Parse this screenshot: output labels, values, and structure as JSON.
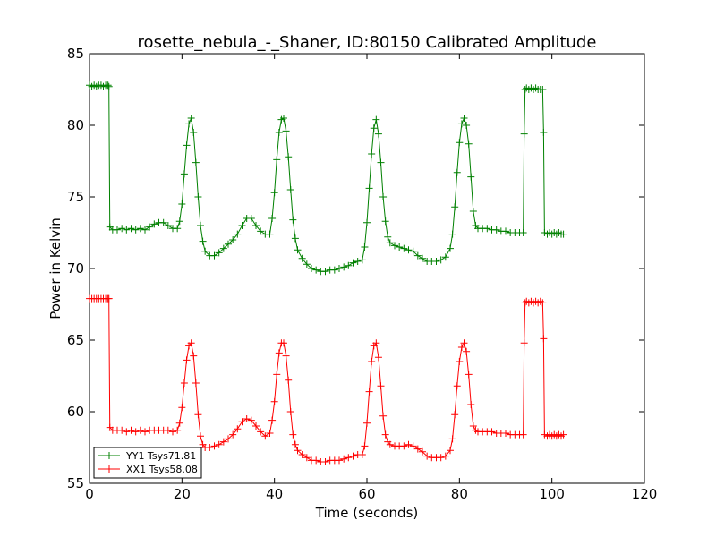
{
  "chart_data": {
    "type": "line",
    "title": "rosette_nebula_-_Shaner, ID:80150 Calibrated Amplitude",
    "xlabel": "Time (seconds)",
    "ylabel": "Power in Kelvin",
    "xlim": [
      0,
      120
    ],
    "ylim": [
      55,
      85
    ],
    "xticks": [
      0,
      20,
      40,
      60,
      80,
      100,
      120
    ],
    "yticks": [
      55,
      60,
      65,
      70,
      75,
      80,
      85
    ],
    "grid": false,
    "legend_position": "lower-left",
    "marker": "+",
    "series": [
      {
        "name": "YY1 Tsys71.81",
        "color": "#008000",
        "points": [
          [
            0.0,
            82.8
          ],
          [
            0.5,
            82.7
          ],
          [
            1.0,
            82.8
          ],
          [
            1.5,
            82.7
          ],
          [
            2.0,
            82.8
          ],
          [
            2.5,
            82.8
          ],
          [
            3.0,
            82.7
          ],
          [
            3.5,
            82.8
          ],
          [
            4.0,
            82.8
          ],
          [
            4.2,
            82.7
          ],
          [
            4.4,
            72.9
          ],
          [
            5.0,
            72.7
          ],
          [
            6.0,
            72.7
          ],
          [
            7.0,
            72.8
          ],
          [
            8.0,
            72.7
          ],
          [
            9.0,
            72.8
          ],
          [
            10.0,
            72.7
          ],
          [
            11.0,
            72.8
          ],
          [
            12.0,
            72.7
          ],
          [
            13.0,
            72.9
          ],
          [
            14.0,
            73.1
          ],
          [
            15.0,
            73.2
          ],
          [
            16.0,
            73.2
          ],
          [
            17.0,
            73.0
          ],
          [
            18.0,
            72.8
          ],
          [
            19.0,
            72.8
          ],
          [
            19.5,
            73.3
          ],
          [
            20.0,
            74.5
          ],
          [
            20.5,
            76.6
          ],
          [
            21.0,
            78.6
          ],
          [
            21.5,
            80.1
          ],
          [
            22.0,
            80.5
          ],
          [
            22.5,
            79.5
          ],
          [
            23.0,
            77.4
          ],
          [
            23.5,
            75.0
          ],
          [
            24.0,
            73.0
          ],
          [
            24.5,
            71.9
          ],
          [
            25.0,
            71.2
          ],
          [
            26.0,
            70.9
          ],
          [
            27.0,
            70.9
          ],
          [
            28.0,
            71.1
          ],
          [
            29.0,
            71.4
          ],
          [
            30.0,
            71.7
          ],
          [
            31.0,
            72.0
          ],
          [
            32.0,
            72.4
          ],
          [
            33.0,
            73.0
          ],
          [
            34.0,
            73.5
          ],
          [
            35.0,
            73.5
          ],
          [
            36.0,
            73.0
          ],
          [
            37.0,
            72.6
          ],
          [
            38.0,
            72.4
          ],
          [
            39.0,
            72.4
          ],
          [
            39.5,
            73.5
          ],
          [
            40.0,
            75.3
          ],
          [
            40.5,
            77.6
          ],
          [
            41.0,
            79.5
          ],
          [
            41.5,
            80.4
          ],
          [
            42.0,
            80.5
          ],
          [
            42.5,
            79.6
          ],
          [
            43.0,
            77.8
          ],
          [
            43.5,
            75.5
          ],
          [
            44.0,
            73.4
          ],
          [
            44.5,
            72.1
          ],
          [
            45.0,
            71.3
          ],
          [
            46.0,
            70.7
          ],
          [
            47.0,
            70.3
          ],
          [
            48.0,
            70.0
          ],
          [
            49.0,
            69.9
          ],
          [
            50.0,
            69.8
          ],
          [
            51.0,
            69.8
          ],
          [
            52.0,
            69.9
          ],
          [
            53.0,
            69.9
          ],
          [
            54.0,
            70.0
          ],
          [
            55.0,
            70.1
          ],
          [
            56.0,
            70.2
          ],
          [
            57.0,
            70.4
          ],
          [
            58.0,
            70.5
          ],
          [
            59.0,
            70.6
          ],
          [
            59.5,
            71.5
          ],
          [
            60.0,
            73.2
          ],
          [
            60.5,
            75.6
          ],
          [
            61.0,
            78.0
          ],
          [
            61.5,
            79.8
          ],
          [
            62.0,
            80.4
          ],
          [
            62.5,
            79.4
          ],
          [
            63.0,
            77.4
          ],
          [
            63.5,
            75.0
          ],
          [
            64.0,
            73.3
          ],
          [
            64.5,
            72.2
          ],
          [
            65.0,
            71.8
          ],
          [
            66.0,
            71.6
          ],
          [
            67.0,
            71.5
          ],
          [
            68.0,
            71.4
          ],
          [
            69.0,
            71.3
          ],
          [
            70.0,
            71.2
          ],
          [
            71.0,
            70.9
          ],
          [
            72.0,
            70.7
          ],
          [
            73.0,
            70.5
          ],
          [
            74.0,
            70.5
          ],
          [
            75.0,
            70.5
          ],
          [
            76.0,
            70.6
          ],
          [
            77.0,
            70.8
          ],
          [
            78.0,
            71.4
          ],
          [
            78.5,
            72.4
          ],
          [
            79.0,
            74.3
          ],
          [
            79.5,
            76.7
          ],
          [
            80.0,
            78.8
          ],
          [
            80.5,
            80.1
          ],
          [
            81.0,
            80.5
          ],
          [
            81.5,
            80.0
          ],
          [
            82.0,
            78.7
          ],
          [
            82.5,
            76.4
          ],
          [
            83.0,
            74.0
          ],
          [
            83.5,
            73.0
          ],
          [
            84.0,
            72.8
          ],
          [
            85.0,
            72.8
          ],
          [
            86.0,
            72.8
          ],
          [
            87.0,
            72.7
          ],
          [
            88.0,
            72.7
          ],
          [
            89.0,
            72.6
          ],
          [
            90.0,
            72.6
          ],
          [
            91.0,
            72.5
          ],
          [
            92.0,
            72.5
          ],
          [
            93.0,
            72.5
          ],
          [
            93.8,
            72.5
          ],
          [
            94.0,
            79.4
          ],
          [
            94.2,
            82.5
          ],
          [
            94.5,
            82.6
          ],
          [
            95.0,
            82.5
          ],
          [
            95.5,
            82.6
          ],
          [
            96.0,
            82.5
          ],
          [
            96.5,
            82.6
          ],
          [
            97.0,
            82.5
          ],
          [
            97.5,
            82.5
          ],
          [
            98.0,
            82.5
          ],
          [
            98.2,
            79.5
          ],
          [
            98.4,
            72.5
          ],
          [
            99.0,
            72.4
          ],
          [
            99.5,
            72.5
          ],
          [
            100.0,
            72.4
          ],
          [
            100.5,
            72.5
          ],
          [
            101.0,
            72.4
          ],
          [
            101.5,
            72.5
          ],
          [
            102.0,
            72.4
          ],
          [
            102.5,
            72.4
          ]
        ]
      },
      {
        "name": "XX1 Tsys58.08",
        "color": "#ff0000",
        "points": [
          [
            0.0,
            67.9
          ],
          [
            0.5,
            67.9
          ],
          [
            1.0,
            67.9
          ],
          [
            1.5,
            67.9
          ],
          [
            2.0,
            67.9
          ],
          [
            2.5,
            67.9
          ],
          [
            3.0,
            67.9
          ],
          [
            3.5,
            67.9
          ],
          [
            4.0,
            67.9
          ],
          [
            4.2,
            67.9
          ],
          [
            4.4,
            58.9
          ],
          [
            5.0,
            58.7
          ],
          [
            6.0,
            58.7
          ],
          [
            7.0,
            58.7
          ],
          [
            8.0,
            58.6
          ],
          [
            9.0,
            58.7
          ],
          [
            10.0,
            58.6
          ],
          [
            11.0,
            58.7
          ],
          [
            12.0,
            58.6
          ],
          [
            13.0,
            58.7
          ],
          [
            14.0,
            58.7
          ],
          [
            15.0,
            58.7
          ],
          [
            16.0,
            58.7
          ],
          [
            17.0,
            58.7
          ],
          [
            18.0,
            58.6
          ],
          [
            19.0,
            58.7
          ],
          [
            19.5,
            59.2
          ],
          [
            20.0,
            60.3
          ],
          [
            20.5,
            62.0
          ],
          [
            21.0,
            63.6
          ],
          [
            21.5,
            64.6
          ],
          [
            22.0,
            64.8
          ],
          [
            22.5,
            63.9
          ],
          [
            23.0,
            62.0
          ],
          [
            23.5,
            59.8
          ],
          [
            24.0,
            58.3
          ],
          [
            24.5,
            57.7
          ],
          [
            25.0,
            57.5
          ],
          [
            26.0,
            57.5
          ],
          [
            27.0,
            57.6
          ],
          [
            28.0,
            57.7
          ],
          [
            29.0,
            57.9
          ],
          [
            30.0,
            58.1
          ],
          [
            31.0,
            58.4
          ],
          [
            32.0,
            58.8
          ],
          [
            33.0,
            59.3
          ],
          [
            34.0,
            59.5
          ],
          [
            35.0,
            59.4
          ],
          [
            36.0,
            59.0
          ],
          [
            37.0,
            58.6
          ],
          [
            38.0,
            58.3
          ],
          [
            39.0,
            58.5
          ],
          [
            39.5,
            59.4
          ],
          [
            40.0,
            60.7
          ],
          [
            40.5,
            62.6
          ],
          [
            41.0,
            64.1
          ],
          [
            41.5,
            64.8
          ],
          [
            42.0,
            64.8
          ],
          [
            42.5,
            63.9
          ],
          [
            43.0,
            62.2
          ],
          [
            43.5,
            60.0
          ],
          [
            44.0,
            58.4
          ],
          [
            44.5,
            57.7
          ],
          [
            45.0,
            57.3
          ],
          [
            46.0,
            57.0
          ],
          [
            47.0,
            56.8
          ],
          [
            48.0,
            56.6
          ],
          [
            49.0,
            56.6
          ],
          [
            50.0,
            56.5
          ],
          [
            51.0,
            56.5
          ],
          [
            52.0,
            56.6
          ],
          [
            53.0,
            56.6
          ],
          [
            54.0,
            56.6
          ],
          [
            55.0,
            56.7
          ],
          [
            56.0,
            56.8
          ],
          [
            57.0,
            56.9
          ],
          [
            58.0,
            57.0
          ],
          [
            59.0,
            57.0
          ],
          [
            59.5,
            57.6
          ],
          [
            60.0,
            59.2
          ],
          [
            60.5,
            61.4
          ],
          [
            61.0,
            63.5
          ],
          [
            61.5,
            64.6
          ],
          [
            62.0,
            64.8
          ],
          [
            62.5,
            63.8
          ],
          [
            63.0,
            61.8
          ],
          [
            63.5,
            59.7
          ],
          [
            64.0,
            58.4
          ],
          [
            64.5,
            57.9
          ],
          [
            65.0,
            57.7
          ],
          [
            66.0,
            57.6
          ],
          [
            67.0,
            57.6
          ],
          [
            68.0,
            57.6
          ],
          [
            69.0,
            57.7
          ],
          [
            70.0,
            57.6
          ],
          [
            71.0,
            57.4
          ],
          [
            72.0,
            57.2
          ],
          [
            73.0,
            56.9
          ],
          [
            74.0,
            56.8
          ],
          [
            75.0,
            56.8
          ],
          [
            76.0,
            56.8
          ],
          [
            77.0,
            56.9
          ],
          [
            78.0,
            57.3
          ],
          [
            78.5,
            58.1
          ],
          [
            79.0,
            59.8
          ],
          [
            79.5,
            61.8
          ],
          [
            80.0,
            63.5
          ],
          [
            80.5,
            64.5
          ],
          [
            81.0,
            64.8
          ],
          [
            81.5,
            64.2
          ],
          [
            82.0,
            62.6
          ],
          [
            82.5,
            60.5
          ],
          [
            83.0,
            59.0
          ],
          [
            83.5,
            58.7
          ],
          [
            84.0,
            58.6
          ],
          [
            85.0,
            58.6
          ],
          [
            86.0,
            58.6
          ],
          [
            87.0,
            58.6
          ],
          [
            88.0,
            58.5
          ],
          [
            89.0,
            58.5
          ],
          [
            90.0,
            58.5
          ],
          [
            91.0,
            58.4
          ],
          [
            92.0,
            58.4
          ],
          [
            93.0,
            58.4
          ],
          [
            93.8,
            58.4
          ],
          [
            94.0,
            64.8
          ],
          [
            94.2,
            67.6
          ],
          [
            94.5,
            67.7
          ],
          [
            95.0,
            67.6
          ],
          [
            95.5,
            67.7
          ],
          [
            96.0,
            67.6
          ],
          [
            96.5,
            67.7
          ],
          [
            97.0,
            67.6
          ],
          [
            97.5,
            67.7
          ],
          [
            98.0,
            67.6
          ],
          [
            98.2,
            65.1
          ],
          [
            98.4,
            58.4
          ],
          [
            99.0,
            58.3
          ],
          [
            99.5,
            58.4
          ],
          [
            100.0,
            58.3
          ],
          [
            100.5,
            58.4
          ],
          [
            101.0,
            58.3
          ],
          [
            101.5,
            58.4
          ],
          [
            102.0,
            58.3
          ],
          [
            102.5,
            58.4
          ]
        ]
      }
    ]
  }
}
